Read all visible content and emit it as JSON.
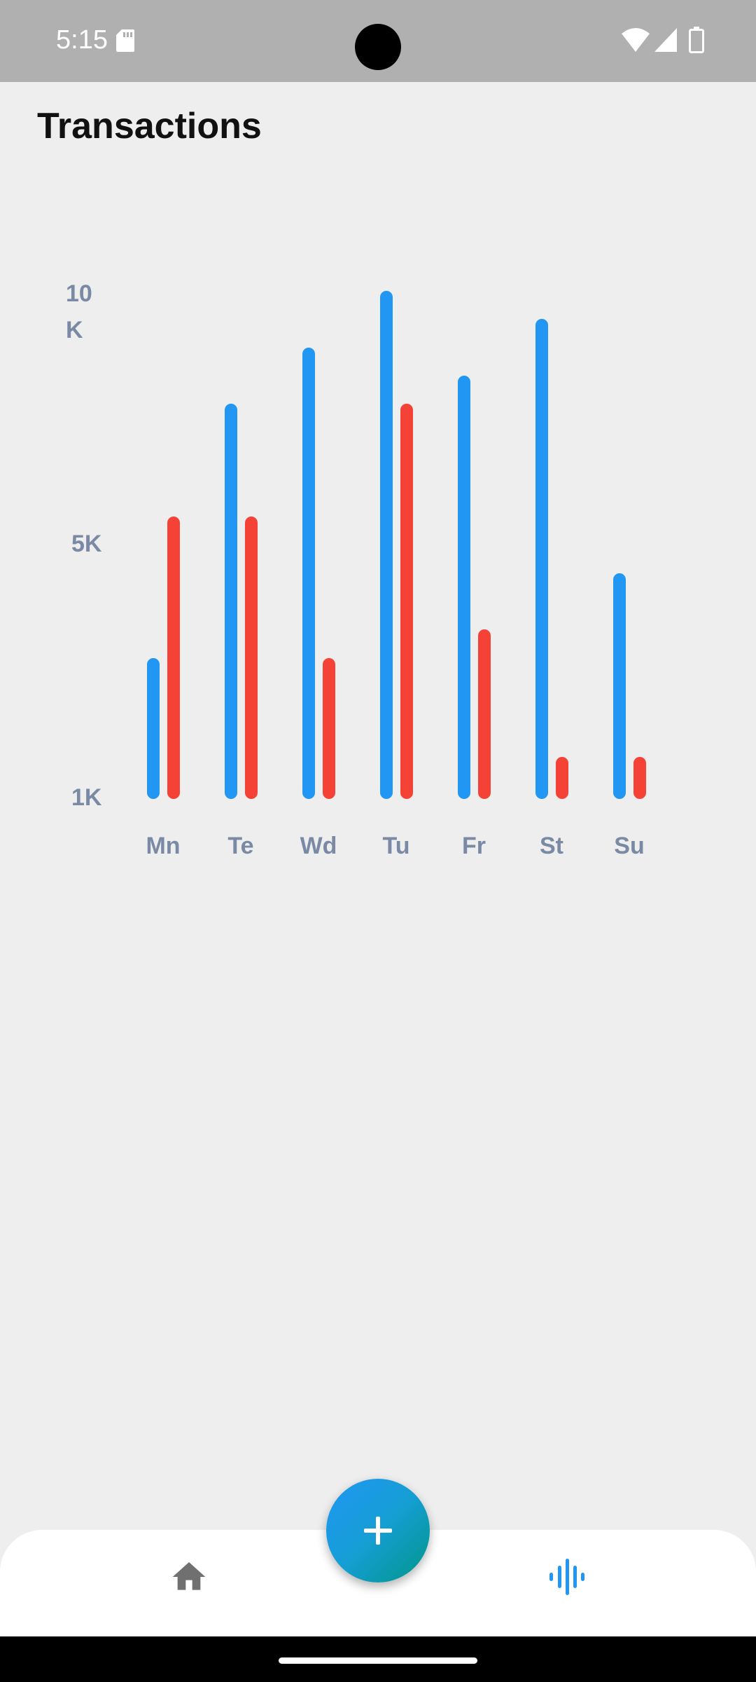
{
  "status_bar": {
    "time": "5:15",
    "icons": [
      "sd-card-icon",
      "wifi-icon",
      "cell-signal-icon",
      "battery-icon"
    ]
  },
  "header": {
    "title": "Transactions"
  },
  "colors": {
    "income": "#2196f3",
    "expense": "#f44336",
    "axis_text": "#7a8aa5"
  },
  "chart_data": {
    "type": "bar",
    "categories": [
      "Mn",
      "Te",
      "Wd",
      "Tu",
      "Fr",
      "St",
      "Su"
    ],
    "series": [
      {
        "values": [
          3500,
          8000,
          9000,
          10000,
          8500,
          9500,
          5000
        ]
      },
      {
        "values": [
          6000,
          6000,
          3500,
          8000,
          4000,
          1750,
          1750
        ]
      }
    ],
    "y_ticks": [
      {
        "value": 10000,
        "label": "10\nK"
      },
      {
        "value": 5000,
        "label": "5K"
      },
      {
        "value": 1000,
        "label": "1K"
      }
    ],
    "ylim": [
      1000,
      10000
    ],
    "title": "",
    "xlabel": "",
    "ylabel": "",
    "grid": false
  },
  "bottom_nav": {
    "items": [
      {
        "icon": "home-icon",
        "active": false
      },
      {
        "icon": "stats-icon",
        "active": true
      }
    ],
    "fab_icon": "plus-icon"
  }
}
